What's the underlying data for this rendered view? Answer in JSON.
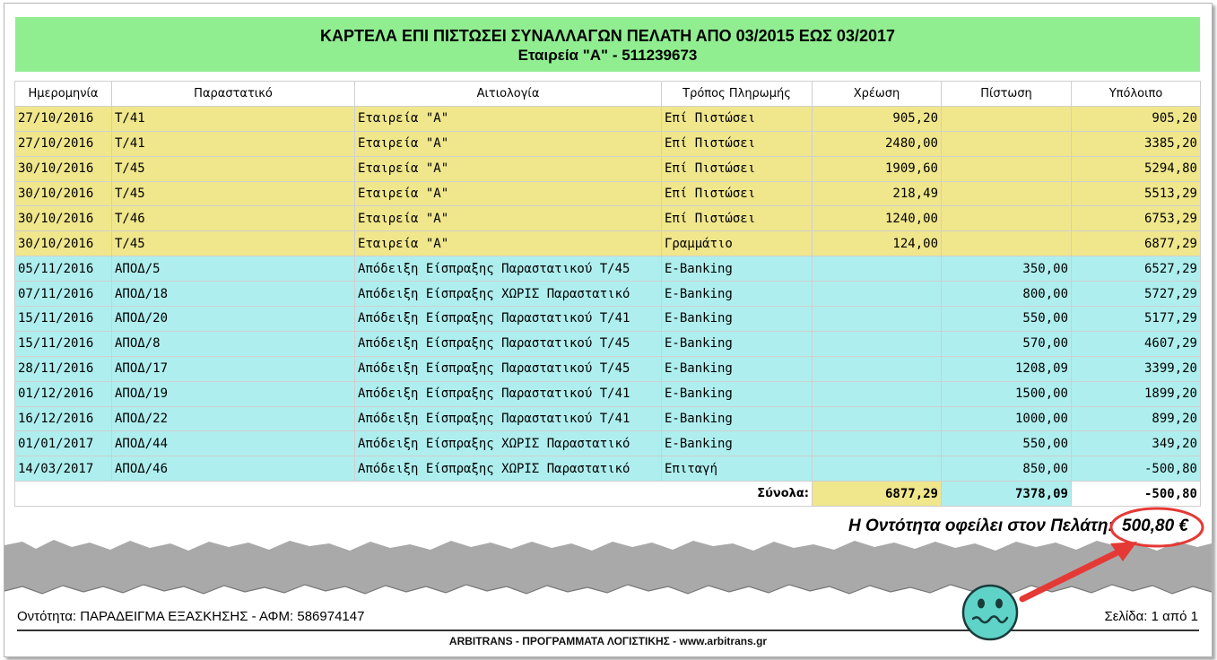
{
  "report": {
    "title": "ΚΑΡΤΕΛΑ ΕΠΙ ΠΙΣΤΩΣΕΙ ΣΥΝΑΛΛΑΓΩΝ ΠΕΛΑΤΗ ΑΠΟ 03/2015 ΕΩΣ 03/2017",
    "subtitle": "Εταιρεία \"Α\" - 511239673"
  },
  "columns": [
    "Ημερομηνία",
    "Παραστατικό",
    "Αιτιολογία",
    "Τρόπος Πληρωμής",
    "Χρέωση",
    "Πίστωση",
    "Υπόλοιπο"
  ],
  "rows": [
    {
      "type": "debit",
      "date": "27/10/2016",
      "doc": "Τ/41",
      "reason": "Εταιρεία \"Α\"",
      "method": "Επί Πιστώσει",
      "debit": "905,20",
      "credit": "",
      "balance": "905,20"
    },
    {
      "type": "debit",
      "date": "27/10/2016",
      "doc": "Τ/41",
      "reason": "Εταιρεία \"Α\"",
      "method": "Επί Πιστώσει",
      "debit": "2480,00",
      "credit": "",
      "balance": "3385,20"
    },
    {
      "type": "debit",
      "date": "30/10/2016",
      "doc": "Τ/45",
      "reason": "Εταιρεία \"Α\"",
      "method": "Επί Πιστώσει",
      "debit": "1909,60",
      "credit": "",
      "balance": "5294,80"
    },
    {
      "type": "debit",
      "date": "30/10/2016",
      "doc": "Τ/45",
      "reason": "Εταιρεία \"Α\"",
      "method": "Επί Πιστώσει",
      "debit": "218,49",
      "credit": "",
      "balance": "5513,29"
    },
    {
      "type": "debit",
      "date": "30/10/2016",
      "doc": "Τ/46",
      "reason": "Εταιρεία \"Α\"",
      "method": "Επί Πιστώσει",
      "debit": "1240,00",
      "credit": "",
      "balance": "6753,29"
    },
    {
      "type": "debit",
      "date": "30/10/2016",
      "doc": "Τ/45",
      "reason": "Εταιρεία \"Α\"",
      "method": "Γραμμάτιο",
      "debit": "124,00",
      "credit": "",
      "balance": "6877,29"
    },
    {
      "type": "credit",
      "date": "05/11/2016",
      "doc": "ΑΠΟΔ/5",
      "reason": "Απόδειξη Είσπραξης Παραστατικού Τ/45",
      "method": "E-Banking",
      "debit": "",
      "credit": "350,00",
      "balance": "6527,29"
    },
    {
      "type": "credit",
      "date": "07/11/2016",
      "doc": "ΑΠΟΔ/18",
      "reason": "Απόδειξη Είσπραξης ΧΩΡΙΣ Παραστατικό",
      "method": "E-Banking",
      "debit": "",
      "credit": "800,00",
      "balance": "5727,29"
    },
    {
      "type": "credit",
      "date": "15/11/2016",
      "doc": "ΑΠΟΔ/20",
      "reason": "Απόδειξη Είσπραξης Παραστατικού Τ/41",
      "method": "E-Banking",
      "debit": "",
      "credit": "550,00",
      "balance": "5177,29"
    },
    {
      "type": "credit",
      "date": "15/11/2016",
      "doc": "ΑΠΟΔ/8",
      "reason": "Απόδειξη Είσπραξης Παραστατικού Τ/45",
      "method": "E-Banking",
      "debit": "",
      "credit": "570,00",
      "balance": "4607,29"
    },
    {
      "type": "credit",
      "date": "28/11/2016",
      "doc": "ΑΠΟΔ/17",
      "reason": "Απόδειξη Είσπραξης Παραστατικού Τ/45",
      "method": "E-Banking",
      "debit": "",
      "credit": "1208,09",
      "balance": "3399,20"
    },
    {
      "type": "credit",
      "date": "01/12/2016",
      "doc": "ΑΠΟΔ/19",
      "reason": "Απόδειξη Είσπραξης Παραστατικού Τ/41",
      "method": "E-Banking",
      "debit": "",
      "credit": "1500,00",
      "balance": "1899,20"
    },
    {
      "type": "credit",
      "date": "16/12/2016",
      "doc": "ΑΠΟΔ/22",
      "reason": "Απόδειξη Είσπραξης Παραστατικού Τ/41",
      "method": "E-Banking",
      "debit": "",
      "credit": "1000,00",
      "balance": "899,20"
    },
    {
      "type": "credit",
      "date": "01/01/2017",
      "doc": "ΑΠΟΔ/44",
      "reason": "Απόδειξη Είσπραξης ΧΩΡΙΣ Παραστατικό",
      "method": "E-Banking",
      "debit": "",
      "credit": "550,00",
      "balance": "349,20"
    },
    {
      "type": "credit",
      "date": "14/03/2017",
      "doc": "ΑΠΟΔ/46",
      "reason": "Απόδειξη Είσπραξης ΧΩΡΙΣ Παραστατικό",
      "method": "Επιταγή",
      "debit": "",
      "credit": "850,00",
      "balance": "-500,80"
    }
  ],
  "totals": {
    "label": "Σύνολα:",
    "debit": "6877,29",
    "credit": "7378,09",
    "balance": "-500,80"
  },
  "balance_note": {
    "text": "Η Οντότητα οφείλει στον Πελάτη:",
    "amount": "500,80 €"
  },
  "footer": {
    "entity": "Οντότητα: ΠΑΡΑΔΕΙΓΜΑ ΕΞΑΣΚΗΣΗΣ - ΑΦΜ: 586974147",
    "page": "Σελίδα: 1 από 1",
    "vendor": "ARBITRANS - ΠΡΟΓΡΑΜΜΑΤΑ ΛΟΓΙΣΤΙΚΗΣ -  www.arbitrans.gr"
  },
  "colors": {
    "header_bg": "#90ee90",
    "debit_row": "#f0e68c",
    "credit_row": "#afeeee",
    "highlight_red": "#e53935",
    "smiley": "#5fd3c8"
  },
  "icons": [
    "smiley-face-icon",
    "red-arrow-icon"
  ]
}
